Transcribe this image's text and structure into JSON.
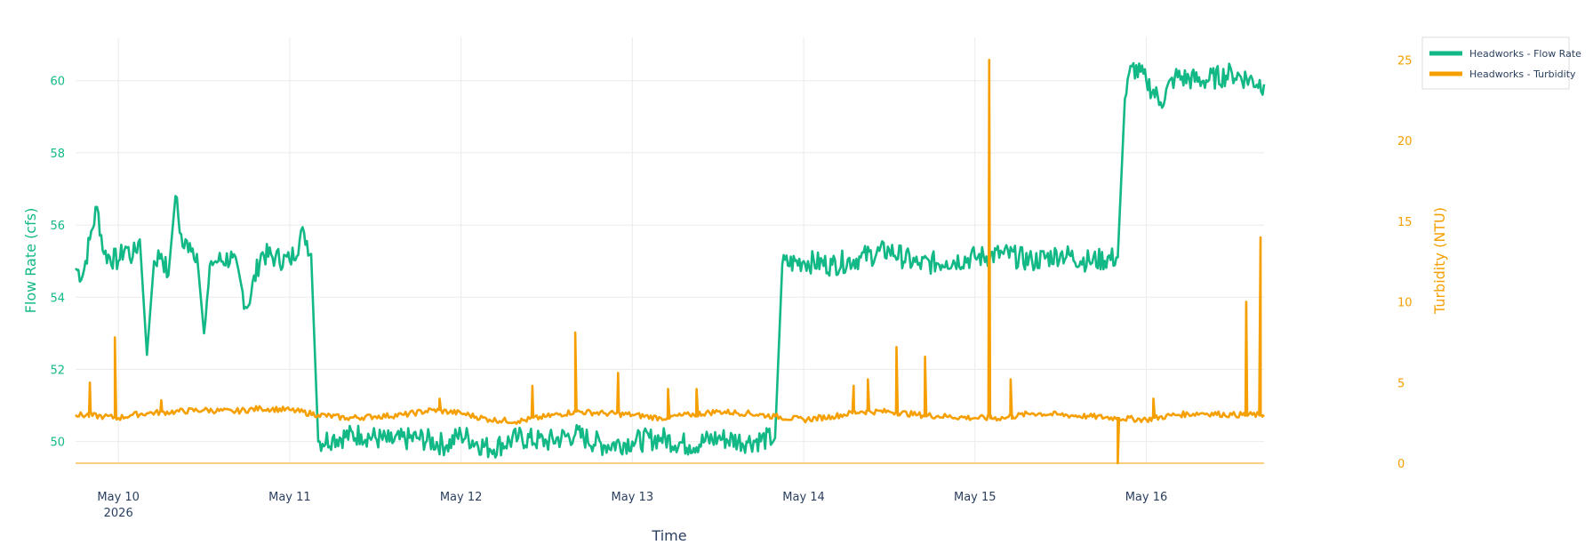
{
  "chart_data": {
    "type": "line",
    "title": "",
    "xlabel": "Time",
    "ylabel_left": "Flow Rate (cfs)",
    "ylabel_right": "Turbidity (NTU)",
    "x_range": [
      "2026-05-09 18:00",
      "2026-05-16 16:30"
    ],
    "x_ticks": [
      {
        "date": "2026-05-10",
        "label": "May 10",
        "sublabel": "2026"
      },
      {
        "date": "2026-05-11",
        "label": "May 11"
      },
      {
        "date": "2026-05-12",
        "label": "May 12"
      },
      {
        "date": "2026-05-13",
        "label": "May 13"
      },
      {
        "date": "2026-05-14",
        "label": "May 14"
      },
      {
        "date": "2026-05-15",
        "label": "May 15"
      },
      {
        "date": "2026-05-16",
        "label": "May 16"
      }
    ],
    "y_left_range": [
      49.4,
      61.2
    ],
    "y_left_ticks": [
      50,
      52,
      54,
      56,
      58,
      60
    ],
    "y_right_range": [
      0,
      26.4
    ],
    "y_right_ticks": [
      0,
      5,
      10,
      15,
      20,
      25
    ],
    "grid": true,
    "legend_position": "top-right",
    "series": [
      {
        "name": "Headworks - Flow Rate",
        "axis": "left",
        "color": "#12b886",
        "points": [
          [
            "2026-05-09 18:00",
            54.8
          ],
          [
            "2026-05-09 19:00",
            54.6
          ],
          [
            "2026-05-09 20:00",
            55.6
          ],
          [
            "2026-05-09 21:00",
            56.5
          ],
          [
            "2026-05-09 22:00",
            55.2
          ],
          [
            "2026-05-10 00:00",
            55.0
          ],
          [
            "2026-05-10 01:00",
            55.4
          ],
          [
            "2026-05-10 02:00",
            55.1
          ],
          [
            "2026-05-10 03:00",
            55.6
          ],
          [
            "2026-05-10 04:00",
            52.4
          ],
          [
            "2026-05-10 05:00",
            55.0
          ],
          [
            "2026-05-10 06:00",
            55.2
          ],
          [
            "2026-05-10 07:00",
            54.6
          ],
          [
            "2026-05-10 08:00",
            56.8
          ],
          [
            "2026-05-10 09:00",
            55.4
          ],
          [
            "2026-05-10 10:00",
            55.5
          ],
          [
            "2026-05-10 11:00",
            55.2
          ],
          [
            "2026-05-10 12:00",
            53.0
          ],
          [
            "2026-05-10 13:00",
            55.0
          ],
          [
            "2026-05-10 14:00",
            55.0
          ],
          [
            "2026-05-10 16:00",
            55.1
          ],
          [
            "2026-05-10 18:00",
            53.7
          ],
          [
            "2026-05-10 20:00",
            55.2
          ],
          [
            "2026-05-10 22:00",
            55.1
          ],
          [
            "2026-05-11 00:00",
            55.0
          ],
          [
            "2026-05-11 02:00",
            55.8
          ],
          [
            "2026-05-11 03:00",
            55.2
          ],
          [
            "2026-05-11 04:00",
            50.0
          ],
          [
            "2026-05-11 06:00",
            50.1
          ],
          [
            "2026-05-11 10:00",
            50.2
          ],
          [
            "2026-05-11 14:00",
            50.0
          ],
          [
            "2026-05-11 18:00",
            50.1
          ],
          [
            "2026-05-11 22:00",
            49.9
          ],
          [
            "2026-05-12 00:00",
            50.2
          ],
          [
            "2026-05-12 04:00",
            49.8
          ],
          [
            "2026-05-12 08:00",
            50.1
          ],
          [
            "2026-05-12 12:00",
            50.0
          ],
          [
            "2026-05-12 16:00",
            50.2
          ],
          [
            "2026-05-12 20:00",
            49.9
          ],
          [
            "2026-05-13 00:00",
            50.0
          ],
          [
            "2026-05-13 04:00",
            50.1
          ],
          [
            "2026-05-13 08:00",
            49.9
          ],
          [
            "2026-05-13 12:00",
            50.1
          ],
          [
            "2026-05-13 16:00",
            50.0
          ],
          [
            "2026-05-13 20:00",
            50.1
          ],
          [
            "2026-05-13 21:00",
            54.9
          ],
          [
            "2026-05-14 00:00",
            55.0
          ],
          [
            "2026-05-14 04:00",
            54.9
          ],
          [
            "2026-05-14 08:00",
            55.1
          ],
          [
            "2026-05-14 12:00",
            55.3
          ],
          [
            "2026-05-14 16:00",
            54.9
          ],
          [
            "2026-05-14 20:00",
            55.0
          ],
          [
            "2026-05-15 00:00",
            55.1
          ],
          [
            "2026-05-15 04:00",
            55.2
          ],
          [
            "2026-05-15 08:00",
            55.0
          ],
          [
            "2026-05-15 12:00",
            55.2
          ],
          [
            "2026-05-15 16:00",
            55.0
          ],
          [
            "2026-05-15 20:00",
            55.1
          ],
          [
            "2026-05-15 21:00",
            59.5
          ],
          [
            "2026-05-15 22:00",
            60.4
          ],
          [
            "2026-05-16 00:00",
            60.0
          ],
          [
            "2026-05-16 02:00",
            59.4
          ],
          [
            "2026-05-16 04:00",
            60.1
          ],
          [
            "2026-05-16 08:00",
            60.0
          ],
          [
            "2026-05-16 12:00",
            60.2
          ],
          [
            "2026-05-16 16:30",
            59.9
          ]
        ]
      },
      {
        "name": "Headworks - Turbidity",
        "axis": "right",
        "color": "#f59f00",
        "points": [
          [
            "2026-05-09 18:00",
            3.0
          ],
          [
            "2026-05-09 22:00",
            2.9
          ],
          [
            "2026-05-10 00:00",
            2.8
          ],
          [
            "2026-05-10 02:00",
            3.0
          ],
          [
            "2026-05-10 04:00",
            3.1
          ],
          [
            "2026-05-10 08:00",
            3.2
          ],
          [
            "2026-05-10 12:00",
            3.3
          ],
          [
            "2026-05-10 16:00",
            3.2
          ],
          [
            "2026-05-10 20:00",
            3.4
          ],
          [
            "2026-05-11 00:00",
            3.3
          ],
          [
            "2026-05-11 04:00",
            3.0
          ],
          [
            "2026-05-11 08:00",
            2.8
          ],
          [
            "2026-05-11 12:00",
            2.9
          ],
          [
            "2026-05-11 16:00",
            3.0
          ],
          [
            "2026-05-11 20:00",
            3.3
          ],
          [
            "2026-05-12 00:00",
            3.1
          ],
          [
            "2026-05-12 04:00",
            2.7
          ],
          [
            "2026-05-12 08:00",
            2.6
          ],
          [
            "2026-05-12 12:00",
            2.9
          ],
          [
            "2026-05-12 16:00",
            3.2
          ],
          [
            "2026-05-12 20:00",
            3.1
          ],
          [
            "2026-05-13 00:00",
            3.0
          ],
          [
            "2026-05-13 04:00",
            2.8
          ],
          [
            "2026-05-13 08:00",
            3.0
          ],
          [
            "2026-05-13 12:00",
            3.2
          ],
          [
            "2026-05-13 16:00",
            3.1
          ],
          [
            "2026-05-13 20:00",
            2.9
          ],
          [
            "2026-05-14 00:00",
            2.7
          ],
          [
            "2026-05-14 04:00",
            2.9
          ],
          [
            "2026-05-14 08:00",
            3.2
          ],
          [
            "2026-05-14 12:00",
            3.2
          ],
          [
            "2026-05-14 16:00",
            3.0
          ],
          [
            "2026-05-14 20:00",
            2.9
          ],
          [
            "2026-05-15 00:00",
            2.8
          ],
          [
            "2026-05-15 04:00",
            2.8
          ],
          [
            "2026-05-15 08:00",
            3.1
          ],
          [
            "2026-05-15 12:00",
            3.0
          ],
          [
            "2026-05-15 16:00",
            2.9
          ],
          [
            "2026-05-15 20:00",
            2.8
          ],
          [
            "2026-05-16 00:00",
            2.7
          ],
          [
            "2026-05-16 04:00",
            3.0
          ],
          [
            "2026-05-16 08:00",
            3.1
          ],
          [
            "2026-05-16 12:00",
            3.0
          ],
          [
            "2026-05-16 16:30",
            3.0
          ]
        ],
        "spikes": [
          [
            "2026-05-09 20:00",
            5.0
          ],
          [
            "2026-05-09 23:30",
            7.8
          ],
          [
            "2026-05-10 06:00",
            3.9
          ],
          [
            "2026-05-11 21:00",
            4.0
          ],
          [
            "2026-05-12 10:00",
            4.8
          ],
          [
            "2026-05-12 16:00",
            8.1
          ],
          [
            "2026-05-12 22:00",
            5.6
          ],
          [
            "2026-05-13 05:00",
            4.6
          ],
          [
            "2026-05-13 09:00",
            4.6
          ],
          [
            "2026-05-14 07:00",
            4.8
          ],
          [
            "2026-05-14 09:00",
            5.2
          ],
          [
            "2026-05-14 13:00",
            7.2
          ],
          [
            "2026-05-14 17:00",
            6.6
          ],
          [
            "2026-05-15 02:00",
            25.0
          ],
          [
            "2026-05-15 05:00",
            5.2
          ],
          [
            "2026-05-15 20:00",
            0.0
          ],
          [
            "2026-05-16 01:00",
            4.0
          ],
          [
            "2026-05-16 14:00",
            10.0
          ],
          [
            "2026-05-16 16:00",
            14.0
          ]
        ]
      }
    ]
  }
}
